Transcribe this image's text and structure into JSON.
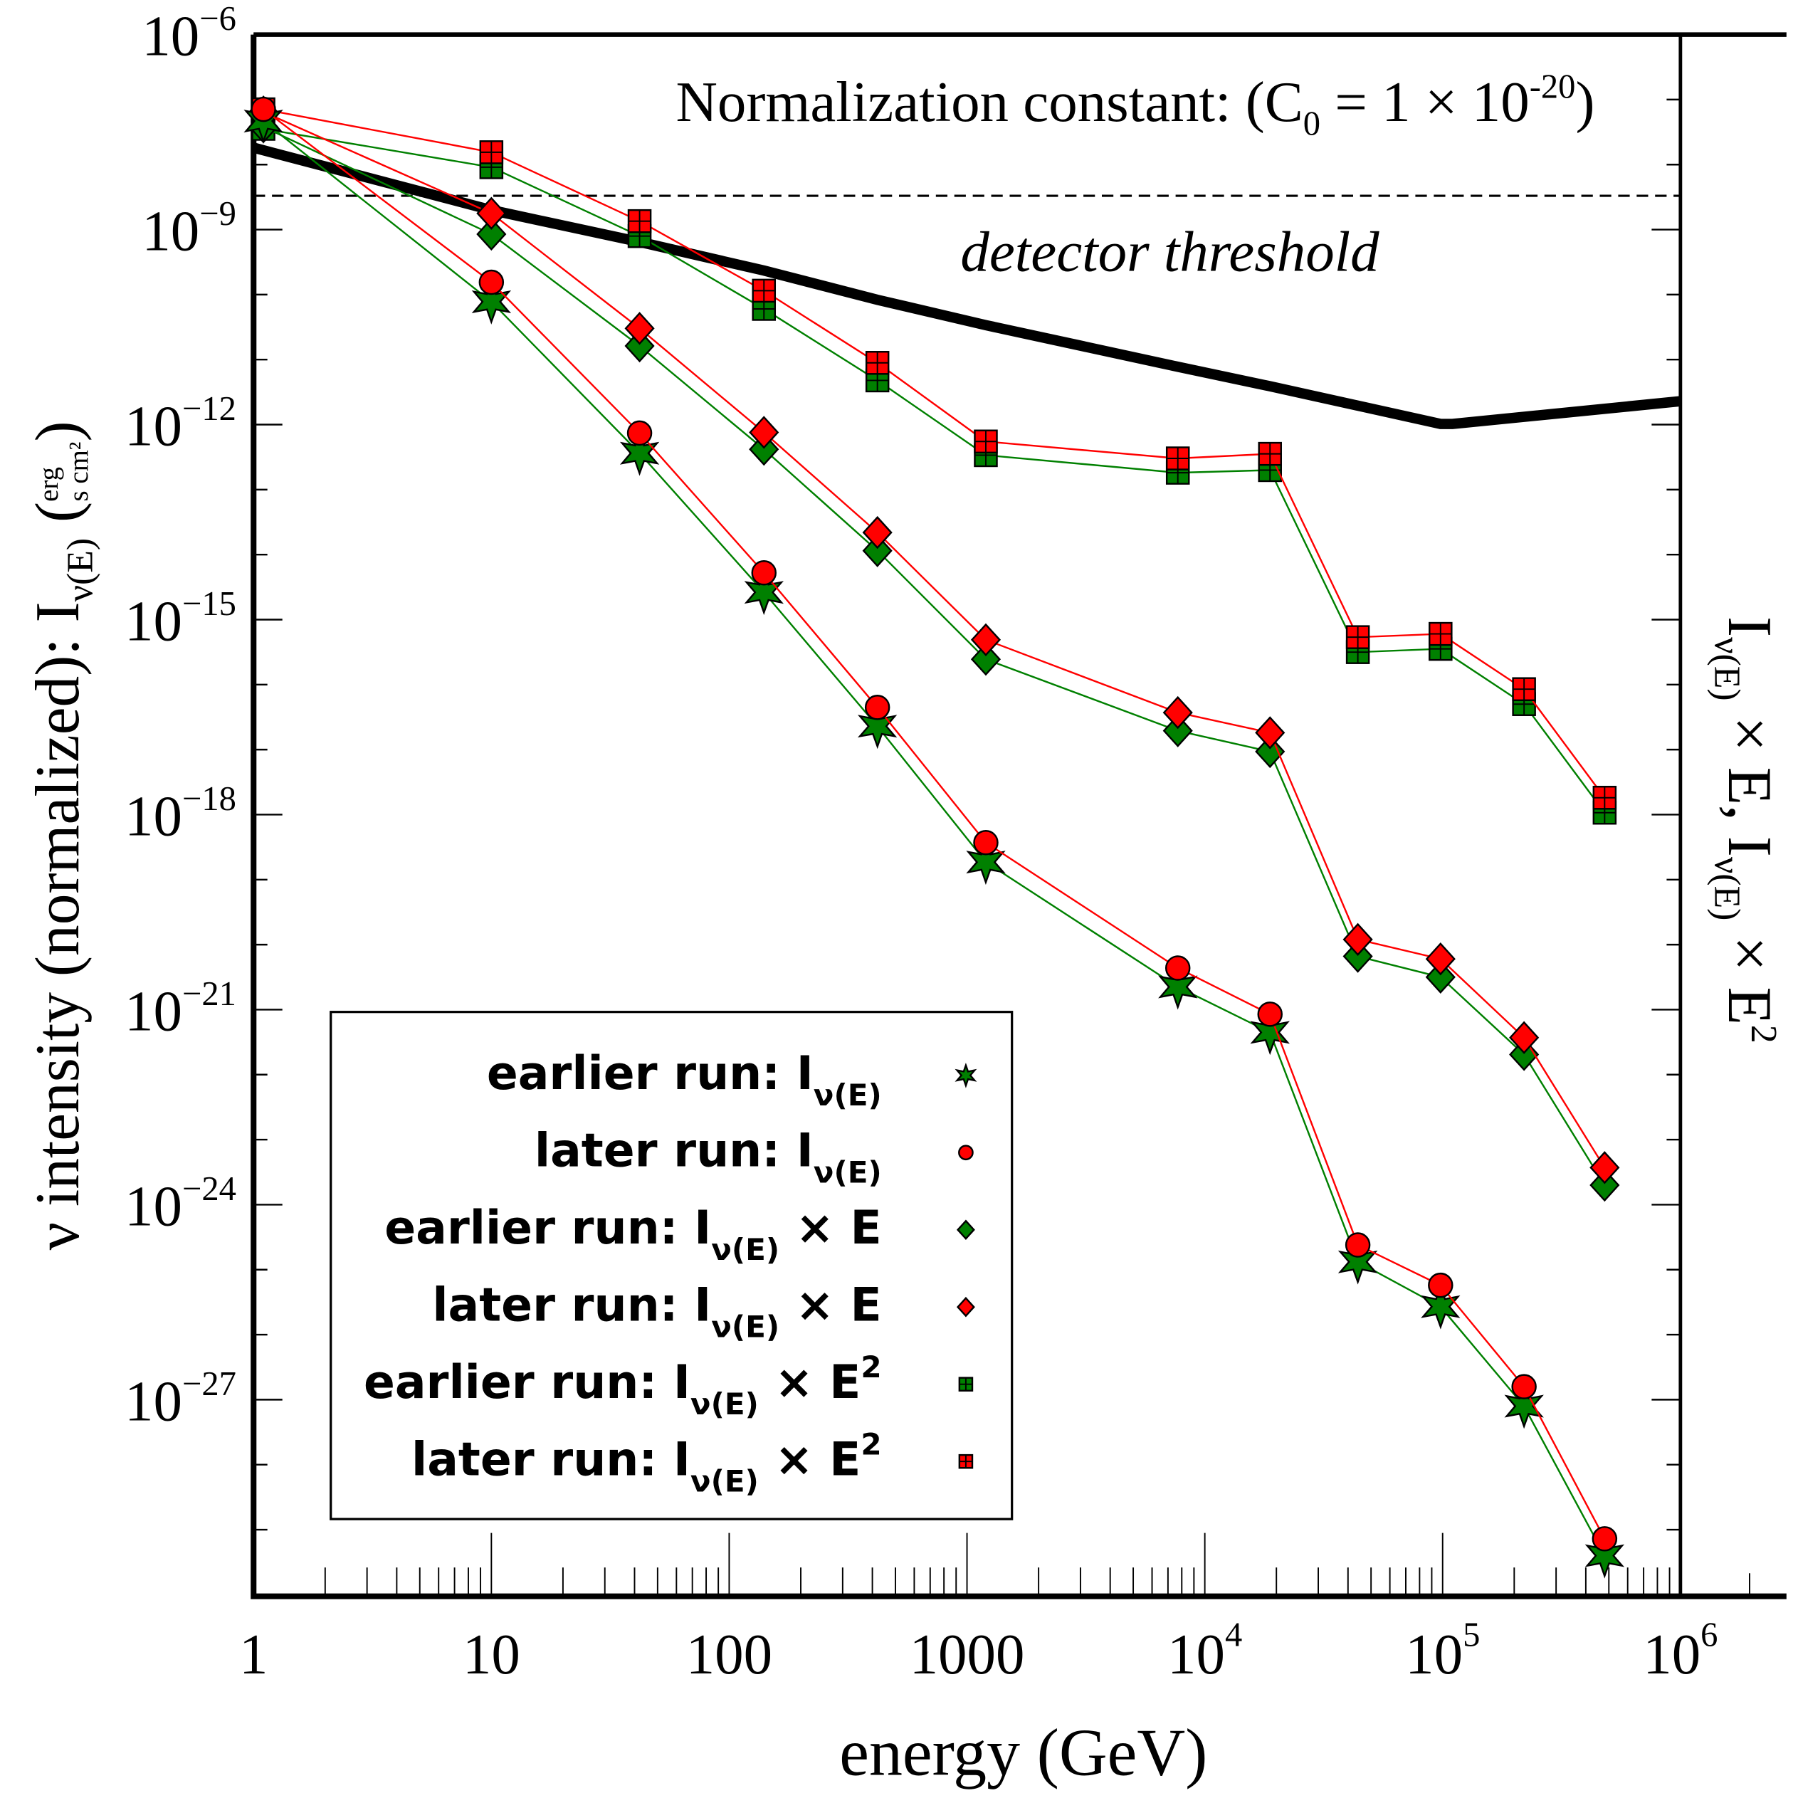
{
  "chart_data": {
    "type": "line",
    "title": "",
    "annotation": {
      "prefix": "Normalization constant: (C",
      "sub": "0",
      "mid": " = 1 × 10",
      "sup": "-20",
      "suffix": ")"
    },
    "threshold_label": "detector threshold",
    "xlabel": "energy (GeV)",
    "ylabel": {
      "main": "ν intensity (normalized): I",
      "sub": "ν(E)",
      "unit_num": "erg",
      "unit_den": "s cm²"
    },
    "y2label": {
      "a": "I",
      "a_sub": "ν(E)",
      "b": " × E, I",
      "b_sub": "ν(E)",
      "c": " × E",
      "c_sup": "2"
    },
    "xscale": "log",
    "yscale": "log",
    "xlim": [
      1,
      1000000
    ],
    "ylim_log10": [
      -30,
      -6
    ],
    "x_ticks": [
      {
        "v": 1,
        "base": "1",
        "exp": ""
      },
      {
        "v": 10,
        "base": "10",
        "exp": ""
      },
      {
        "v": 100,
        "base": "100",
        "exp": ""
      },
      {
        "v": 1000,
        "base": "1000",
        "exp": ""
      },
      {
        "v": 10000,
        "base": "10",
        "exp": "4"
      },
      {
        "v": 100000,
        "base": "10",
        "exp": "5"
      },
      {
        "v": 1000000,
        "base": "10",
        "exp": "6"
      }
    ],
    "y_ticks": [
      {
        "log": -6,
        "base": "10",
        "exp": "−6"
      },
      {
        "log": -9,
        "base": "10",
        "exp": "−9"
      },
      {
        "log": -12,
        "base": "10",
        "exp": "−12"
      },
      {
        "log": -15,
        "base": "10",
        "exp": "−15"
      },
      {
        "log": -18,
        "base": "10",
        "exp": "−18"
      },
      {
        "log": -21,
        "base": "10",
        "exp": "−21"
      },
      {
        "log": -24,
        "base": "10",
        "exp": "−24"
      },
      {
        "log": -27,
        "base": "10",
        "exp": "−27"
      }
    ],
    "x": [
      1.1,
      10,
      42,
      140,
      420,
      1200,
      7700,
      18800,
      44000,
      98000,
      220000,
      480000
    ],
    "series": [
      {
        "name": "earlier run: I_ν(E)",
        "legend": {
          "a": "earlier run: I",
          "sub": "ν(E)",
          "b": "",
          "sup": ""
        },
        "color": "#008000",
        "marker": "star",
        "log10_values": [
          -7.33,
          -10.11,
          -12.44,
          -14.58,
          -16.64,
          -18.73,
          -20.65,
          -21.35,
          -24.88,
          -25.57,
          -27.1,
          -29.4
        ]
      },
      {
        "name": "later run: I_ν(E)",
        "legend": {
          "a": "later run: I",
          "sub": "ν(E)",
          "b": "",
          "sup": ""
        },
        "color": "#ff0000",
        "marker": "circle",
        "log10_values": [
          -7.15,
          -9.81,
          -12.13,
          -14.28,
          -16.35,
          -18.43,
          -20.36,
          -21.07,
          -24.62,
          -25.24,
          -26.8,
          -29.14
        ]
      },
      {
        "name": "earlier run: I_ν(E) × E",
        "legend": {
          "a": "earlier run: I",
          "sub": "ν(E)",
          "b": " × E",
          "sup": ""
        },
        "color": "#008000",
        "marker": "diamond",
        "log10_values": [
          -7.42,
          -9.07,
          -10.79,
          -12.38,
          -13.94,
          -15.61,
          -16.71,
          -17.03,
          -20.18,
          -20.5,
          -21.69,
          -23.7
        ]
      },
      {
        "name": "later run: I_ν(E) × E",
        "legend": {
          "a": "later run: I",
          "sub": "ν(E)",
          "b": " × E",
          "sup": ""
        },
        "color": "#ff0000",
        "marker": "diamond",
        "log10_values": [
          -7.19,
          -8.75,
          -10.52,
          -12.12,
          -13.66,
          -15.31,
          -16.43,
          -16.74,
          -19.92,
          -20.22,
          -21.43,
          -23.43
        ]
      },
      {
        "name": "earlier run: I_ν(E) × E²",
        "legend": {
          "a": "earlier run:  I",
          "sub": "ν(E)",
          "b": " × E",
          "sup": "2"
        },
        "color": "#008000",
        "marker": "square",
        "log10_values": [
          -7.45,
          -8.04,
          -9.1,
          -10.22,
          -11.32,
          -12.47,
          -12.74,
          -12.7,
          -15.5,
          -15.45,
          -16.3,
          -17.97
        ]
      },
      {
        "name": "later run: I_ν(E) × E²",
        "legend": {
          "a": "later run: I",
          "sub": "ν(E)",
          "b": " × E",
          "sup": "2"
        },
        "color": "#ff0000",
        "marker": "square",
        "log10_values": [
          -7.15,
          -7.81,
          -8.87,
          -9.94,
          -11.05,
          -12.26,
          -12.52,
          -12.45,
          -15.27,
          -15.22,
          -16.07,
          -17.74
        ]
      }
    ],
    "threshold_curve": {
      "x": [
        1,
        10,
        42,
        140,
        420,
        1200,
        7700,
        18800,
        98000,
        110000,
        1000000
      ],
      "log10_values": [
        -7.74,
        -8.7,
        -9.19,
        -9.63,
        -10.08,
        -10.47,
        -11.11,
        -11.41,
        -11.99,
        -11.99,
        -11.64
      ]
    },
    "dashed_line_log10": -8.48,
    "legend_position": "lower-left",
    "grid": false
  }
}
